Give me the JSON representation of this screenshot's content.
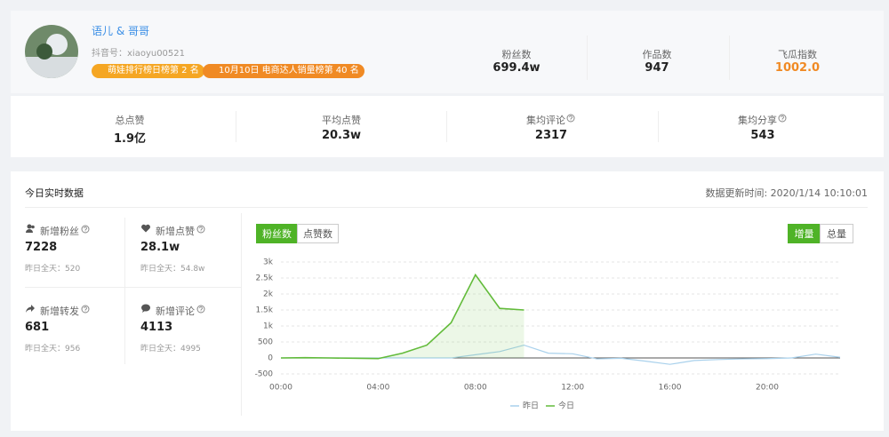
{
  "profile": {
    "name": "语儿 & 哥哥",
    "douyin_id": "抖音号：xiaoyu00521",
    "badges": [
      "萌娃排行榜日榜第 2 名",
      "10月10日 电商达人销量榜第 40 名"
    ],
    "stats": [
      {
        "label": "粉丝数",
        "value": "699.4w"
      },
      {
        "label": "作品数",
        "value": "947"
      },
      {
        "label": "飞瓜指数",
        "value": "1002.0"
      }
    ]
  },
  "summary": [
    {
      "label": "总点赞",
      "value": "1.9亿"
    },
    {
      "label": "平均点赞",
      "value": "20.3w"
    },
    {
      "label": "集均评论",
      "value": "2317"
    },
    {
      "label": "集均分享",
      "value": "543"
    }
  ],
  "realtime": {
    "title": "今日实时数据",
    "update_time": "数据更新时间: 2020/1/14 10:10:01",
    "metrics": [
      {
        "label": "新增粉丝",
        "value": "7228",
        "yesterday": "昨日全天：520"
      },
      {
        "label": "新增点赞",
        "value": "28.1w",
        "yesterday": "昨日全天：54.8w"
      },
      {
        "label": "新增转发",
        "value": "681",
        "yesterday": "昨日全天：956"
      },
      {
        "label": "新增评论",
        "value": "4113",
        "yesterday": "昨日全天：4995"
      }
    ],
    "tabs": [
      "粉丝数",
      "点赞数"
    ],
    "modes": [
      "增量",
      "总量"
    ]
  },
  "chart_data": {
    "type": "line",
    "categories": [
      "00:00",
      null,
      null,
      null,
      "04:00",
      null,
      null,
      null,
      "08:00",
      null,
      null,
      null,
      "12:00",
      null,
      null,
      null,
      "16:00",
      null,
      null,
      null,
      "20:00",
      null,
      null,
      null
    ],
    "series": [
      {
        "name": "昨日",
        "color": "#a9d1ec",
        "values": [
          0,
          0,
          0,
          0,
          0,
          0,
          0,
          0,
          100,
          200,
          400,
          150,
          130,
          -30,
          -10,
          -100,
          -200,
          -80,
          -50,
          -30,
          -20,
          0,
          120,
          20
        ]
      },
      {
        "name": "今日",
        "color": "#62bb3a",
        "values": [
          0,
          10,
          0,
          -10,
          -20,
          150,
          400,
          1100,
          2600,
          1550,
          1500,
          null,
          null,
          null,
          null,
          null,
          null,
          null,
          null,
          null,
          null,
          null,
          null,
          null
        ]
      }
    ],
    "ylim": [
      -500,
      3000
    ],
    "yticks": [
      -500,
      0,
      500,
      {
        "value": 1000,
        "label": "1k"
      },
      {
        "value": 1500,
        "label": "1.5k"
      },
      {
        "value": 2000,
        "label": "2k"
      },
      {
        "value": 2500,
        "label": "2.5k"
      },
      {
        "value": 3000,
        "label": "3k"
      }
    ],
    "grid": true
  }
}
